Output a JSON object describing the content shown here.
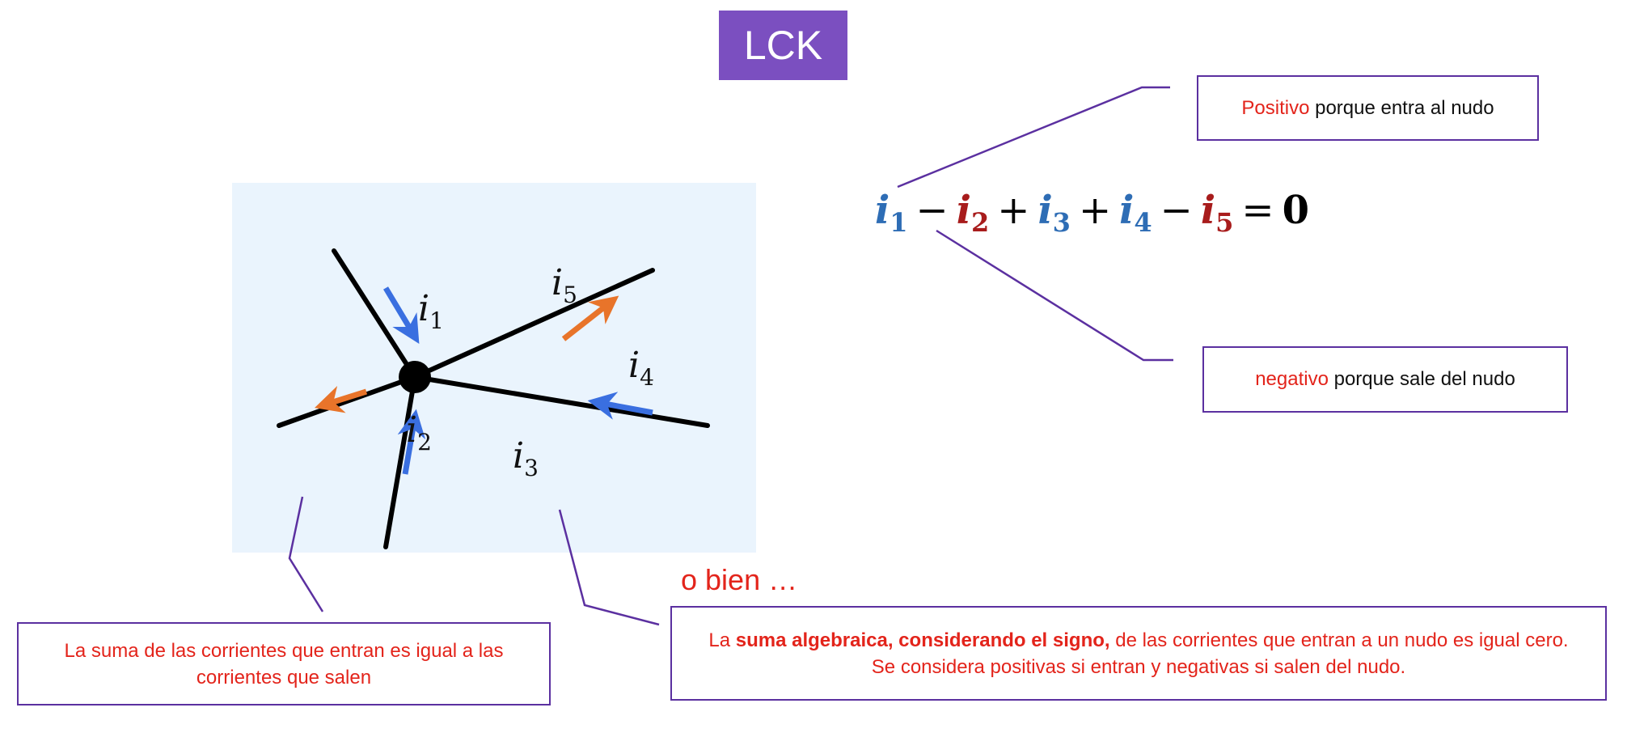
{
  "title": "LCK",
  "diagram": {
    "currents": [
      {
        "name": "i",
        "sub": "1",
        "direction": "entering",
        "color": "#3a6fe0"
      },
      {
        "name": "i",
        "sub": "2",
        "direction": "leaving",
        "color": "#e8742a"
      },
      {
        "name": "i",
        "sub": "3",
        "direction": "entering",
        "color": "#3a6fe0"
      },
      {
        "name": "i",
        "sub": "4",
        "direction": "entering",
        "color": "#3a6fe0"
      },
      {
        "name": "i",
        "sub": "5",
        "direction": "leaving",
        "color": "#e8742a"
      }
    ]
  },
  "equation": {
    "terms": [
      {
        "sign": "",
        "var": "i",
        "sub": "1",
        "color": "blue"
      },
      {
        "sign": "−",
        "var": "i",
        "sub": "2",
        "color": "red"
      },
      {
        "sign": "+",
        "var": "i",
        "sub": "3",
        "color": "blue"
      },
      {
        "sign": "+",
        "var": "i",
        "sub": "4",
        "color": "blue"
      },
      {
        "sign": "−",
        "var": "i",
        "sub": "5",
        "color": "red"
      }
    ],
    "equals": "=",
    "rhs": "0"
  },
  "callouts": {
    "positive": {
      "highlight": "Positivo",
      "rest": " porque entra al nudo"
    },
    "negative": {
      "highlight": "negativo",
      "rest": " porque sale del nudo"
    },
    "left": {
      "text": "La suma de las corrientes que entran es  igual a las corrientes que salen"
    },
    "right": {
      "prefix": "La ",
      "strong": "suma algebraica, considerando el signo,",
      "line1_rest": " de las corrientes que entran a un nudo es igual cero.",
      "line2": "Se considera positivas si entran y negativas si salen del nudo."
    }
  },
  "o_bien": "o bien …",
  "colors": {
    "accent": "#7b4fc0",
    "border": "#5b30a0",
    "highlight_red": "#e3241b",
    "equation_blue": "#2e6db5",
    "equation_red": "#a81c1c",
    "arrow_blue": "#3a6fe0",
    "arrow_orange": "#e8742a",
    "panel_bg": "#eaf4fd"
  }
}
